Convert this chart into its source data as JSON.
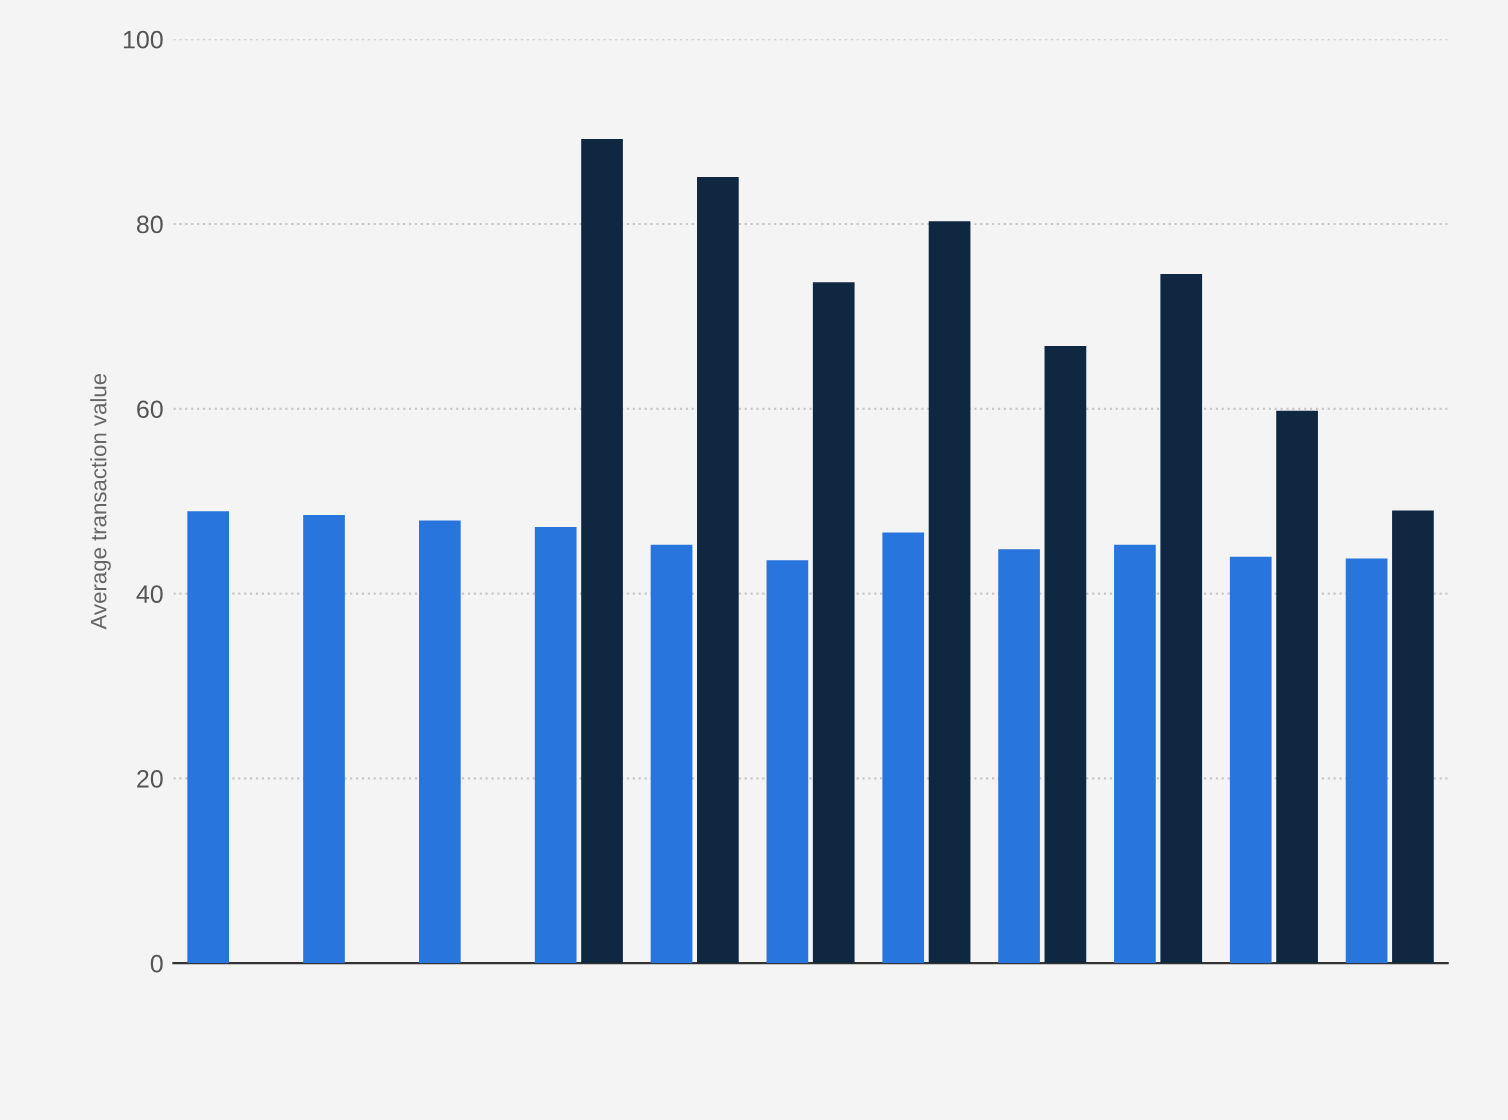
{
  "chart_data": {
    "type": "bar",
    "ylabel": "Average transaction value",
    "categories": [
      null,
      null,
      null,
      null,
      null,
      null,
      null,
      null,
      null,
      null,
      null
    ],
    "series": [
      {
        "color": "#2876dd",
        "values": [
          48.9,
          48.5,
          47.9,
          47.2,
          45.3,
          43.6,
          46.6,
          44.8,
          45.3,
          44.0,
          43.8
        ]
      },
      {
        "color": "#0f2740",
        "values": [
          null,
          null,
          null,
          89.2,
          85.1,
          73.7,
          80.3,
          66.8,
          74.6,
          59.8,
          49.0
        ]
      }
    ],
    "ylim": [
      0,
      100
    ],
    "yticks": [
      0,
      20,
      40,
      60,
      80,
      100
    ],
    "grid": "y",
    "legend": false
  }
}
